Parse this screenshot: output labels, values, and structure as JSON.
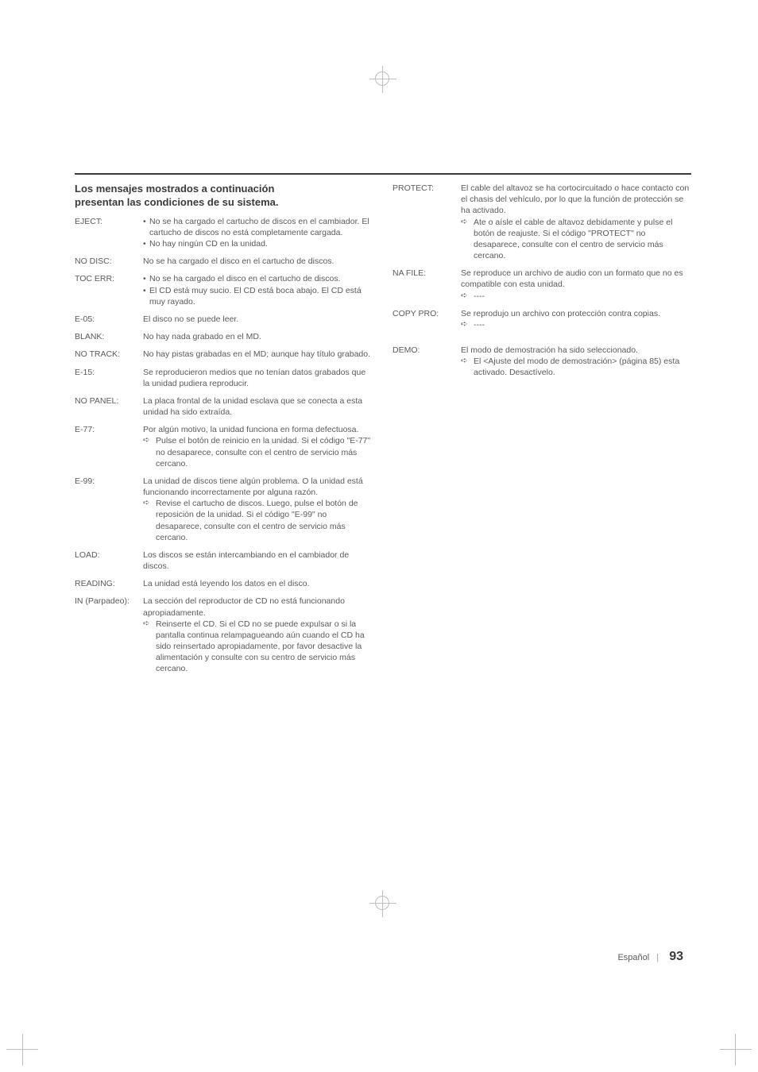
{
  "page": {
    "language": "Español",
    "number": "93"
  },
  "section": {
    "title_line1": "Los mensajes mostrados a continuación",
    "title_line2": "presentan las condiciones de su sistema."
  },
  "left": [
    {
      "label": "EJECT:",
      "body": {
        "bullets": [
          "No se ha cargado el cartucho de discos en el cambiador. El cartucho de discos no está completamente cargada.",
          "No hay ningún CD en la unidad."
        ]
      }
    },
    {
      "label": "NO DISC:",
      "body": {
        "text": "No se ha cargado el disco en el cartucho de discos."
      }
    },
    {
      "label": "TOC ERR:",
      "body": {
        "bullets": [
          "No se ha cargado el disco en el cartucho de discos.",
          "El CD está muy sucio. El CD está boca abajo. El CD está muy rayado."
        ]
      }
    },
    {
      "label": "E-05:",
      "body": {
        "text": "El disco no se puede leer."
      }
    },
    {
      "label": "BLANK:",
      "body": {
        "text": "No hay nada grabado en el MD."
      }
    },
    {
      "label": "NO TRACK:",
      "body": {
        "text": "No hay pistas grabadas en el MD; aunque hay título grabado."
      }
    },
    {
      "label": "E-15:",
      "body": {
        "text": "Se reproducieron medios que no tenían datos grabados que la unidad pudiera reproducir."
      }
    },
    {
      "label": "NO PANEL:",
      "body": {
        "text": "La placa frontal de la unidad esclava que se conecta a esta unidad ha sido extraída."
      }
    },
    {
      "label": "E-77:",
      "body": {
        "text": "Por algún motivo, la unidad funciona en forma defectuosa.",
        "actions": [
          "Pulse el botón de reinicio en la unidad. Si el código \"E-77\" no desaparece, consulte con el centro de servicio más cercano."
        ]
      }
    },
    {
      "label": "E-99:",
      "body": {
        "text": "La unidad de discos tiene algún problema. O la unidad está funcionando incorrectamente por alguna razón.",
        "actions": [
          "Revise el cartucho de discos. Luego, pulse el botón de reposición de la unidad. Si el código \"E-99\" no desaparece, consulte con el centro de servicio más cercano."
        ]
      }
    },
    {
      "label": "LOAD:",
      "body": {
        "text": "Los discos se están intercambiando en el cambiador de discos."
      }
    },
    {
      "label": "READING:",
      "body": {
        "text": "La unidad está leyendo los datos en el disco."
      }
    },
    {
      "label": "IN (Parpadeo):",
      "body": {
        "text": "La sección del reproductor de CD no está funcionando apropiadamente.",
        "actions": [
          "Reinserte el CD. Si el CD no se puede expulsar o si la pantalla continua relampagueando aún cuando el CD ha sido reinsertado apropiadamente, por favor desactive la alimentación y consulte con su centro de servicio más cercano."
        ]
      }
    }
  ],
  "right": [
    {
      "label": "PROTECT:",
      "body": {
        "text": "El cable del altavoz se ha cortocircuitado o hace contacto con el chasis del vehículo, por lo que la función de protección se ha activado.",
        "actions": [
          "Ate o aísle el cable de altavoz debidamente y pulse el botón de reajuste. Si el código \"PROTECT\" no desaparece, consulte con el centro de servicio más cercano."
        ]
      }
    },
    {
      "label": "NA FILE:",
      "body": {
        "text": "Se reproduce un archivo de audio con un formato que no es compatible con esta unidad.",
        "actions": [
          "----"
        ]
      }
    },
    {
      "label": "COPY PRO:",
      "body": {
        "text": "Se reprodujo un archivo con protección contra copias.",
        "actions": [
          "----"
        ]
      }
    },
    {
      "label": "DEMO:",
      "spaced": true,
      "body": {
        "text": "El modo de demostración ha sido seleccionado.",
        "actions": [
          "El <Ajuste del modo de demostración> (página 85) esta activado. Desactívelo."
        ]
      }
    }
  ]
}
